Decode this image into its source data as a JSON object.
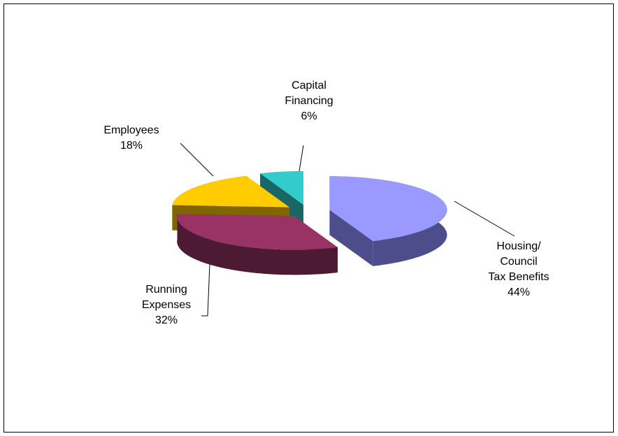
{
  "chart_data": {
    "type": "pie3d",
    "categories": [
      "Housing/\nCouncil\nTax Benefits",
      "Running\nExpenses",
      "Employees",
      "Capital\nFinancing"
    ],
    "values": [
      44,
      32,
      18,
      6
    ],
    "value_labels": [
      "44%",
      "32%",
      "18%",
      "6%"
    ],
    "colors": [
      "#9999ff",
      "#993366",
      "#ffcc00",
      "#33cccc"
    ],
    "side_colors": [
      "#4d4d8c",
      "#4d1a33",
      "#806600",
      "#1a6666"
    ]
  }
}
